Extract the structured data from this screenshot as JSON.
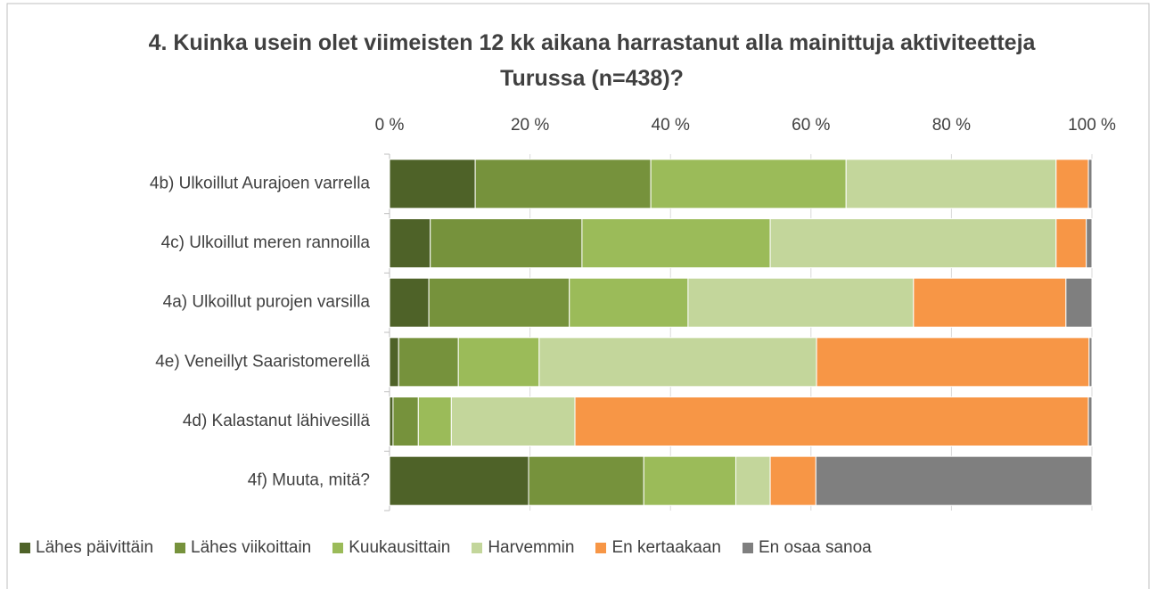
{
  "chart_data": {
    "type": "stacked_barh",
    "title": "4. Kuinka usein olet viimeisten 12 kk aikana harrastanut alla mainittuja aktiviteetteja Turussa (n=438)?",
    "categories": [
      "4b) Ulkoillut Aurajoen varrella",
      "4c) Ulkoillut meren rannoilla",
      "4a) Ulkoillut purojen varsilla",
      "4e) Veneillyt Saaristomerellä",
      "4d) Kalastanut lähivesillä",
      "4f) Muuta, mitä?"
    ],
    "series": [
      {
        "name": "Lähes päivittäin",
        "color": "#4e6228",
        "values": [
          12.2,
          5.8,
          5.6,
          1.3,
          0.5,
          19.8
        ]
      },
      {
        "name": "Lähes viikoittain",
        "color": "#76923c",
        "values": [
          25.0,
          21.6,
          20.0,
          8.5,
          3.6,
          16.4
        ]
      },
      {
        "name": "Kuukausittain",
        "color": "#9bbb59",
        "values": [
          27.8,
          26.8,
          16.9,
          11.5,
          4.7,
          13.1
        ]
      },
      {
        "name": "Harvemmin",
        "color": "#c3d69b",
        "values": [
          29.9,
          40.7,
          32.1,
          39.5,
          17.6,
          4.9
        ]
      },
      {
        "name": "En kertaakaan",
        "color": "#f79646",
        "values": [
          4.6,
          4.3,
          21.7,
          38.8,
          73.1,
          6.5
        ]
      },
      {
        "name": "En osaa sanoa",
        "color": "#7f7f7f",
        "values": [
          0.5,
          0.8,
          3.7,
          0.4,
          0.5,
          39.3
        ]
      }
    ],
    "xlim": [
      0,
      100
    ],
    "xticks": [
      {
        "value": 0,
        "label": "0 %"
      },
      {
        "value": 20,
        "label": "20 %"
      },
      {
        "value": 40,
        "label": "40 %"
      },
      {
        "value": 60,
        "label": "60 %"
      },
      {
        "value": 80,
        "label": "80 %"
      },
      {
        "value": 100,
        "label": "100 %"
      }
    ],
    "grid": true,
    "legend": "bottom"
  }
}
